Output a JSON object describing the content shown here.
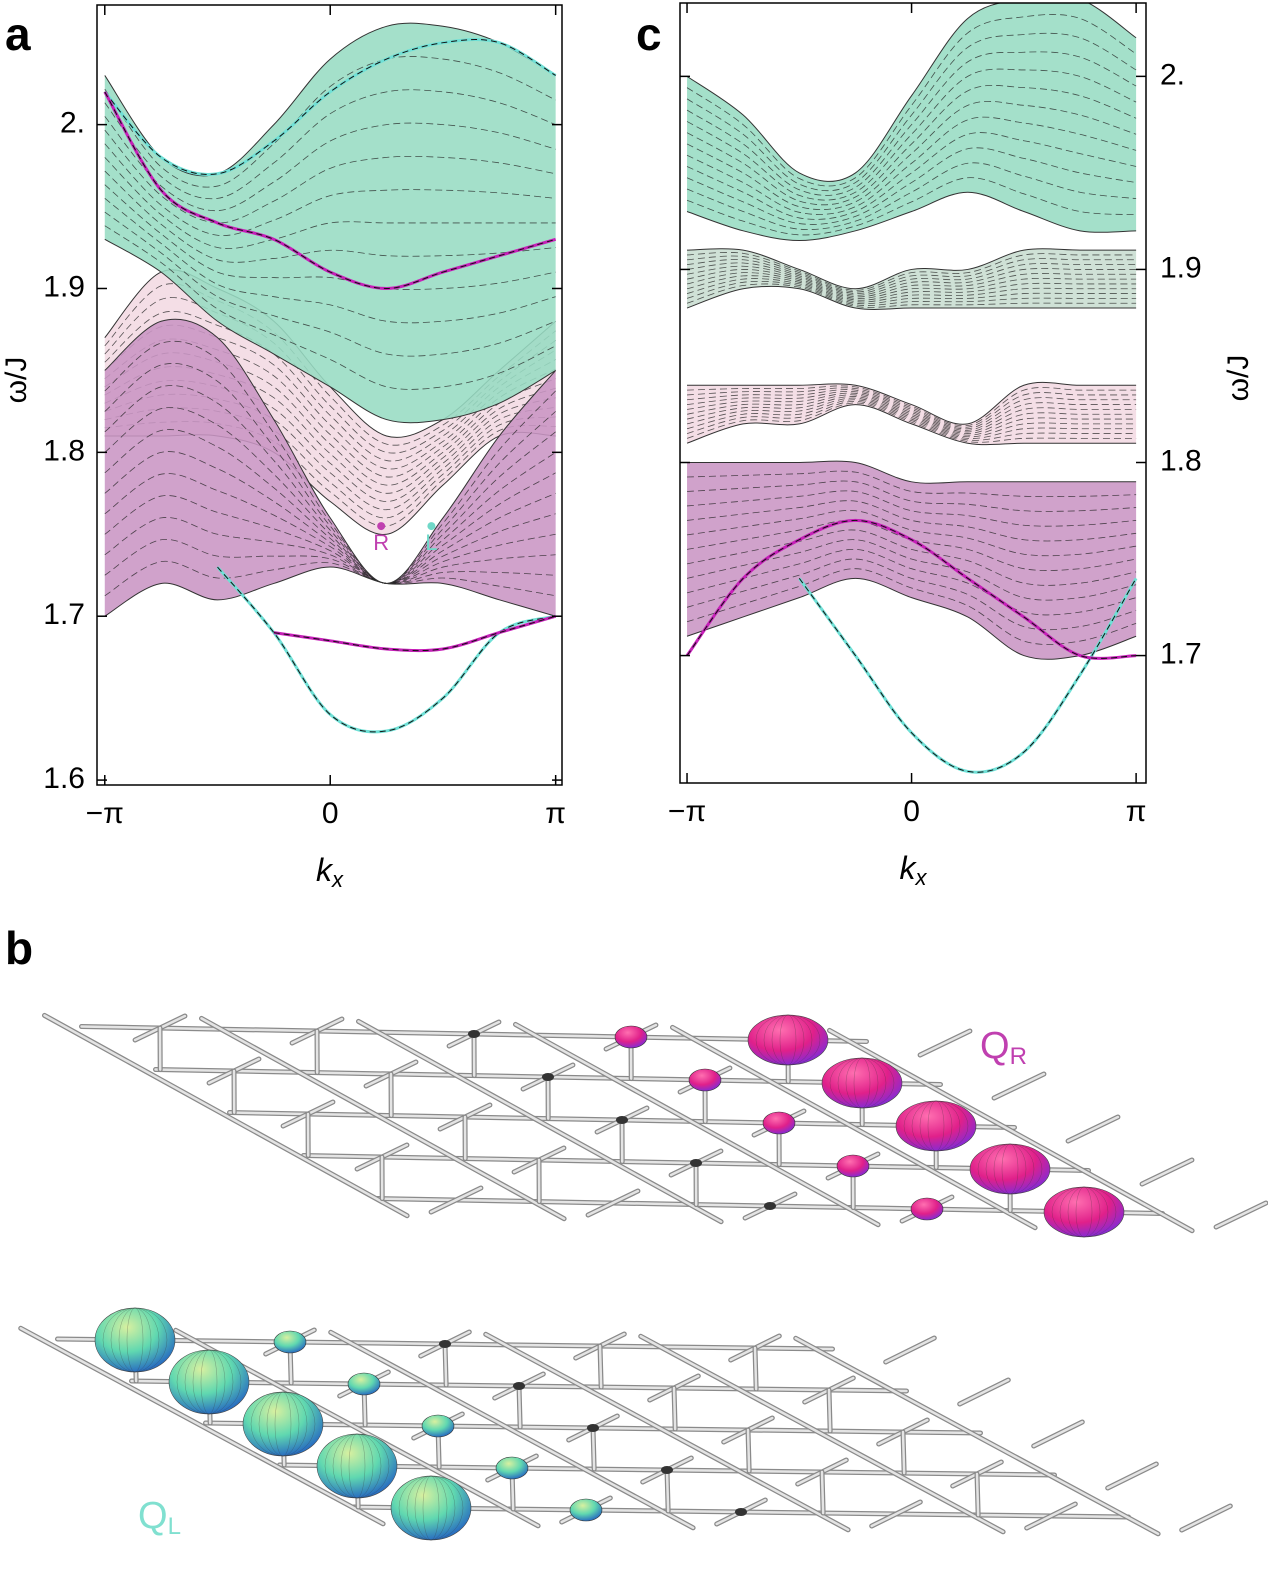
{
  "chart_data": [
    {
      "type": "line",
      "panel_label": "a",
      "yaxis_side": "left",
      "xlabel": {
        "main": "k",
        "sub": "x"
      },
      "ylabel": "ω/J",
      "x": [
        -3.1416,
        -2.3562,
        -1.5708,
        -0.7854,
        0,
        0.7854,
        1.5708,
        2.3562,
        3.1416
      ],
      "xlim": [
        -3.25,
        3.23
      ],
      "ylim": [
        1.597,
        2.073
      ],
      "xticks": [
        {
          "value": -3.1416,
          "label": "−π"
        },
        0,
        {
          "value": 3.1416,
          "label": "π"
        }
      ],
      "yticks": [
        1.6,
        1.7,
        1.8,
        1.9,
        {
          "value": 2,
          "label": "2."
        }
      ],
      "bands": [
        {
          "color": "#f3d9e2",
          "upper": [
            1.87,
            1.91,
            1.9,
            1.88,
            1.84,
            1.81,
            1.82,
            1.85,
            1.88
          ],
          "lower": [
            1.81,
            1.81,
            1.81,
            1.8,
            1.77,
            1.75,
            1.78,
            1.81,
            1.81
          ]
        },
        {
          "color": "#c995c4",
          "upper": [
            1.85,
            1.88,
            1.87,
            1.82,
            1.76,
            1.72,
            1.76,
            1.81,
            1.85
          ],
          "lower": [
            1.7,
            1.72,
            1.71,
            1.72,
            1.73,
            1.72,
            1.72,
            1.71,
            1.7
          ]
        },
        {
          "color": "#97dcc3",
          "upper": [
            2.03,
            1.98,
            1.97,
            2.0,
            2.04,
            2.06,
            2.06,
            2.05,
            2.03
          ],
          "lower": [
            1.93,
            1.91,
            1.88,
            1.86,
            1.84,
            1.82,
            1.82,
            1.83,
            1.85
          ]
        }
      ],
      "series": [
        {
          "color": "#6fe0d6",
          "values": [
            null,
            null,
            1.73,
            1.69,
            1.64,
            1.63,
            1.65,
            1.69,
            1.7
          ]
        },
        {
          "color": "#c61fb8",
          "values": [
            null,
            null,
            null,
            1.69,
            1.685,
            1.68,
            1.68,
            1.69,
            1.7
          ]
        },
        {
          "color": "#6fe0d6",
          "values": [
            2.02,
            1.98,
            1.97,
            1.99,
            2.02,
            2.04,
            2.05,
            2.05,
            2.03
          ]
        },
        {
          "color": "#c61fb8",
          "values": [
            2.02,
            1.96,
            1.94,
            1.93,
            1.91,
            1.9,
            1.91,
            1.92,
            1.93
          ]
        }
      ],
      "points": [
        {
          "label": "R",
          "x": 0.71,
          "y": 1.755,
          "color": "#c040b0"
        },
        {
          "label": "L",
          "x": 1.41,
          "y": 1.755,
          "color": "#70d8c8"
        }
      ]
    },
    {
      "type": "line",
      "panel_label": "c",
      "yaxis_side": "right",
      "xlabel": {
        "main": "k",
        "sub": "x"
      },
      "ylabel": "ω/J",
      "x": [
        -3.1416,
        -2.3562,
        -1.5708,
        -0.7854,
        0,
        0.7854,
        1.5708,
        2.3562,
        3.1416
      ],
      "xlim": [
        -3.24,
        3.28
      ],
      "ylim": [
        1.634,
        2.038
      ],
      "xticks": [
        {
          "value": -3.1416,
          "label": "−π"
        },
        0,
        {
          "value": 3.1416,
          "label": "π"
        }
      ],
      "yticks": [
        1.7,
        1.8,
        1.9,
        {
          "value": 2,
          "label": "2."
        }
      ],
      "bands": [
        {
          "color": "#c995c4",
          "upper": [
            1.8,
            1.8,
            1.8,
            1.8,
            1.79,
            1.79,
            1.79,
            1.79,
            1.79
          ],
          "lower": [
            1.71,
            1.72,
            1.73,
            1.74,
            1.73,
            1.72,
            1.7,
            1.7,
            1.71
          ]
        },
        {
          "color": "#f3d9e2",
          "upper": [
            1.84,
            1.84,
            1.84,
            1.84,
            1.83,
            1.82,
            1.84,
            1.84,
            1.84
          ],
          "lower": [
            1.81,
            1.82,
            1.82,
            1.83,
            1.82,
            1.81,
            1.81,
            1.81,
            1.81
          ]
        },
        {
          "color": "#c8ddd0",
          "upper": [
            1.91,
            1.91,
            1.9,
            1.89,
            1.9,
            1.9,
            1.91,
            1.91,
            1.91
          ],
          "lower": [
            1.88,
            1.89,
            1.89,
            1.88,
            1.88,
            1.88,
            1.88,
            1.88,
            1.88
          ]
        },
        {
          "color": "#97dcc3",
          "upper": [
            2.0,
            1.98,
            1.95,
            1.95,
            1.99,
            2.03,
            2.04,
            2.04,
            2.02
          ],
          "lower": [
            1.93,
            1.92,
            1.915,
            1.92,
            1.93,
            1.94,
            1.93,
            1.92,
            1.92
          ]
        }
      ],
      "series": [
        {
          "color": "#6fe0d6",
          "values": [
            null,
            null,
            1.74,
            1.7,
            1.66,
            1.64,
            1.65,
            1.69,
            1.74
          ]
        },
        {
          "color": "#c61fb8",
          "values": [
            1.7,
            1.74,
            1.76,
            1.77,
            1.76,
            1.74,
            1.72,
            1.7,
            1.7
          ]
        }
      ],
      "points": []
    }
  ],
  "lattice": {
    "panel_label": "b",
    "top_label": {
      "main": "Q",
      "sub": "R"
    },
    "bottom_label": {
      "main": "Q",
      "sub": "L"
    }
  }
}
